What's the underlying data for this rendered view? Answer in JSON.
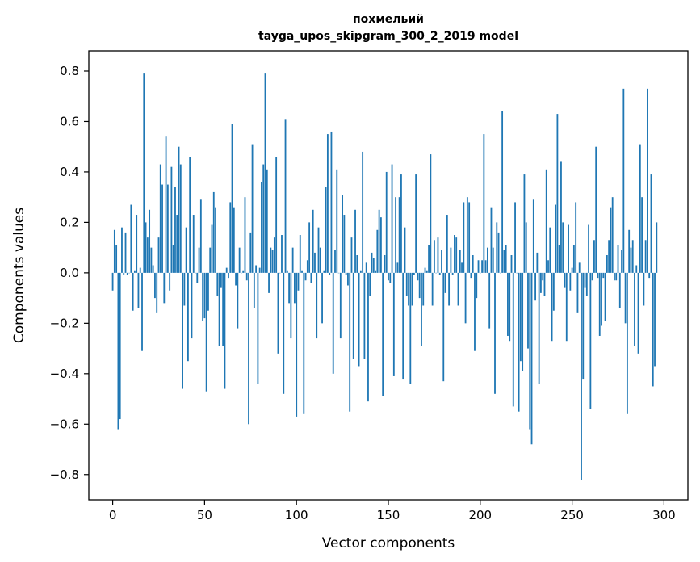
{
  "chart_data": {
    "type": "bar",
    "title": "похмельий",
    "subtitle": "tayga_upos_skipgram_300_2_2019 model",
    "xlabel": "Vector components",
    "ylabel": "Components values",
    "xlim": [
      -13,
      313
    ],
    "ylim": [
      -0.9,
      0.88
    ],
    "x_ticks": [
      0,
      50,
      100,
      150,
      200,
      250,
      300
    ],
    "x_tick_labels": [
      "0",
      "50",
      "100",
      "150",
      "200",
      "250",
      "300"
    ],
    "y_ticks": [
      -0.8,
      -0.6,
      -0.4,
      -0.2,
      0.0,
      0.2,
      0.4,
      0.6,
      0.8
    ],
    "y_tick_labels": [
      "−0.8",
      "−0.6",
      "−0.4",
      "−0.2",
      "0.0",
      "0.2",
      "0.4",
      "0.6",
      "0.8"
    ],
    "bar_color": "#1f77b4",
    "grid": false,
    "values": [
      -0.07,
      0.17,
      0.11,
      -0.62,
      -0.58,
      0.18,
      -0.01,
      0.16,
      -0.01,
      0.0,
      0.27,
      -0.15,
      0.01,
      0.23,
      -0.14,
      0.02,
      -0.31,
      0.79,
      0.2,
      0.14,
      0.25,
      0.1,
      0.03,
      -0.1,
      -0.16,
      0.14,
      0.43,
      0.35,
      -0.12,
      0.54,
      0.35,
      -0.07,
      0.42,
      0.11,
      0.34,
      0.23,
      0.5,
      0.43,
      -0.46,
      -0.13,
      0.18,
      -0.35,
      0.46,
      -0.26,
      0.23,
      0.0,
      -0.04,
      0.1,
      0.29,
      -0.19,
      -0.18,
      -0.47,
      -0.15,
      0.1,
      0.19,
      0.32,
      0.26,
      -0.09,
      -0.29,
      -0.06,
      -0.29,
      -0.46,
      0.02,
      -0.02,
      0.28,
      0.59,
      0.26,
      -0.05,
      -0.22,
      0.1,
      0.0,
      0.01,
      0.3,
      -0.03,
      -0.6,
      0.16,
      0.51,
      -0.14,
      0.03,
      -0.44,
      0.02,
      0.36,
      0.43,
      0.79,
      0.41,
      -0.08,
      0.1,
      0.09,
      0.14,
      0.46,
      -0.32,
      0.0,
      0.15,
      -0.48,
      0.61,
      0.01,
      -0.12,
      -0.26,
      0.1,
      -0.12,
      -0.57,
      -0.07,
      0.15,
      0.01,
      -0.56,
      -0.03,
      0.05,
      0.2,
      -0.04,
      0.25,
      0.08,
      -0.26,
      0.18,
      0.1,
      -0.2,
      0.01,
      0.34,
      0.55,
      -0.01,
      0.56,
      -0.4,
      0.09,
      0.41,
      0.0,
      -0.26,
      0.31,
      0.23,
      -0.01,
      -0.05,
      -0.55,
      0.14,
      -0.34,
      0.25,
      0.07,
      -0.37,
      0.01,
      0.48,
      -0.34,
      0.04,
      -0.51,
      -0.09,
      0.08,
      0.06,
      0.01,
      0.17,
      0.25,
      0.22,
      -0.49,
      0.07,
      0.4,
      -0.03,
      -0.04,
      0.43,
      -0.41,
      0.3,
      0.04,
      0.3,
      0.39,
      -0.42,
      0.18,
      -0.09,
      -0.13,
      -0.44,
      -0.13,
      -0.01,
      0.39,
      -0.03,
      -0.1,
      -0.29,
      -0.13,
      0.02,
      0.01,
      0.11,
      0.47,
      -0.13,
      0.13,
      0.0,
      0.14,
      -0.01,
      0.09,
      -0.43,
      -0.08,
      0.23,
      -0.13,
      0.1,
      -0.01,
      0.15,
      0.14,
      -0.13,
      0.09,
      0.04,
      0.28,
      -0.2,
      0.3,
      0.28,
      -0.02,
      0.07,
      -0.31,
      -0.1,
      0.05,
      0.0,
      0.05,
      0.55,
      0.05,
      0.1,
      -0.22,
      0.26,
      0.1,
      -0.48,
      0.2,
      0.16,
      0.0,
      0.64,
      0.09,
      0.11,
      -0.25,
      -0.27,
      0.07,
      -0.53,
      0.28,
      0.0,
      -0.55,
      -0.35,
      -0.39,
      0.39,
      0.2,
      -0.3,
      -0.62,
      -0.68,
      0.29,
      -0.11,
      0.08,
      -0.44,
      -0.08,
      -0.03,
      -0.09,
      0.41,
      0.05,
      0.18,
      -0.27,
      -0.15,
      0.27,
      0.63,
      0.11,
      0.44,
      0.2,
      -0.06,
      -0.27,
      0.19,
      -0.07,
      0.02,
      0.11,
      0.28,
      -0.16,
      0.04,
      -0.82,
      -0.42,
      -0.06,
      -0.09,
      0.19,
      -0.54,
      -0.03,
      0.13,
      0.5,
      -0.02,
      -0.25,
      -0.21,
      -0.02,
      -0.19,
      0.07,
      0.13,
      0.26,
      0.3,
      -0.03,
      -0.03,
      0.11,
      -0.14,
      0.09,
      0.73,
      -0.2,
      -0.56,
      0.17,
      0.1,
      0.13,
      -0.29,
      0.03,
      -0.32,
      0.51,
      0.3,
      -0.13,
      0.13,
      0.73,
      -0.02,
      0.39,
      -0.45,
      -0.37,
      0.2
    ]
  }
}
